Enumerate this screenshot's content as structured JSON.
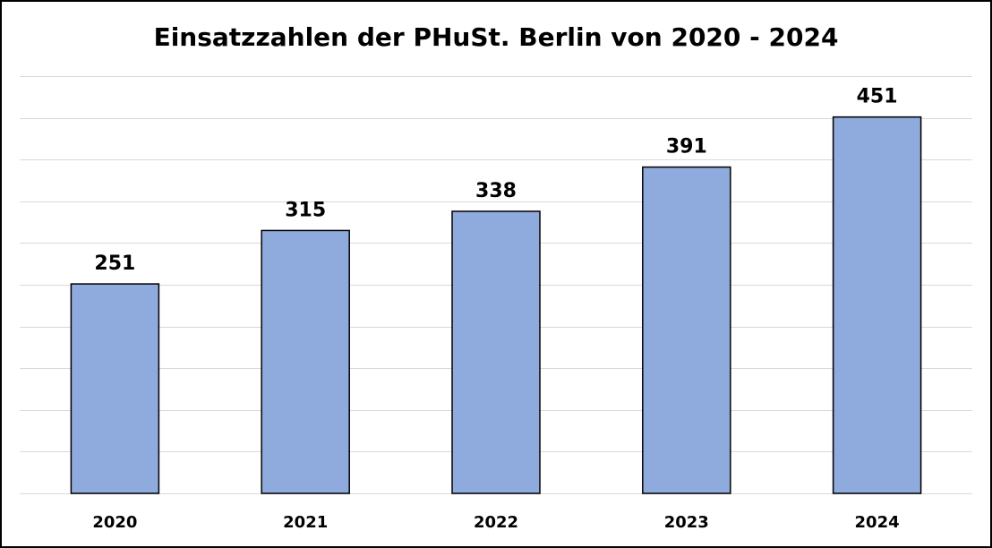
{
  "chart_data": {
    "type": "bar",
    "title": "Einsatzzahlen der PHuSt. Berlin von 2020 - 2024",
    "categories": [
      "2020",
      "2021",
      "2022",
      "2023",
      "2024"
    ],
    "values": [
      251,
      315,
      338,
      391,
      451
    ],
    "ylim": [
      0,
      500
    ],
    "grid": true,
    "legend": "none",
    "colors": {
      "bar_fill": "#8faadc",
      "bar_stroke": "#000000",
      "grid": "#d9d9d9"
    }
  }
}
